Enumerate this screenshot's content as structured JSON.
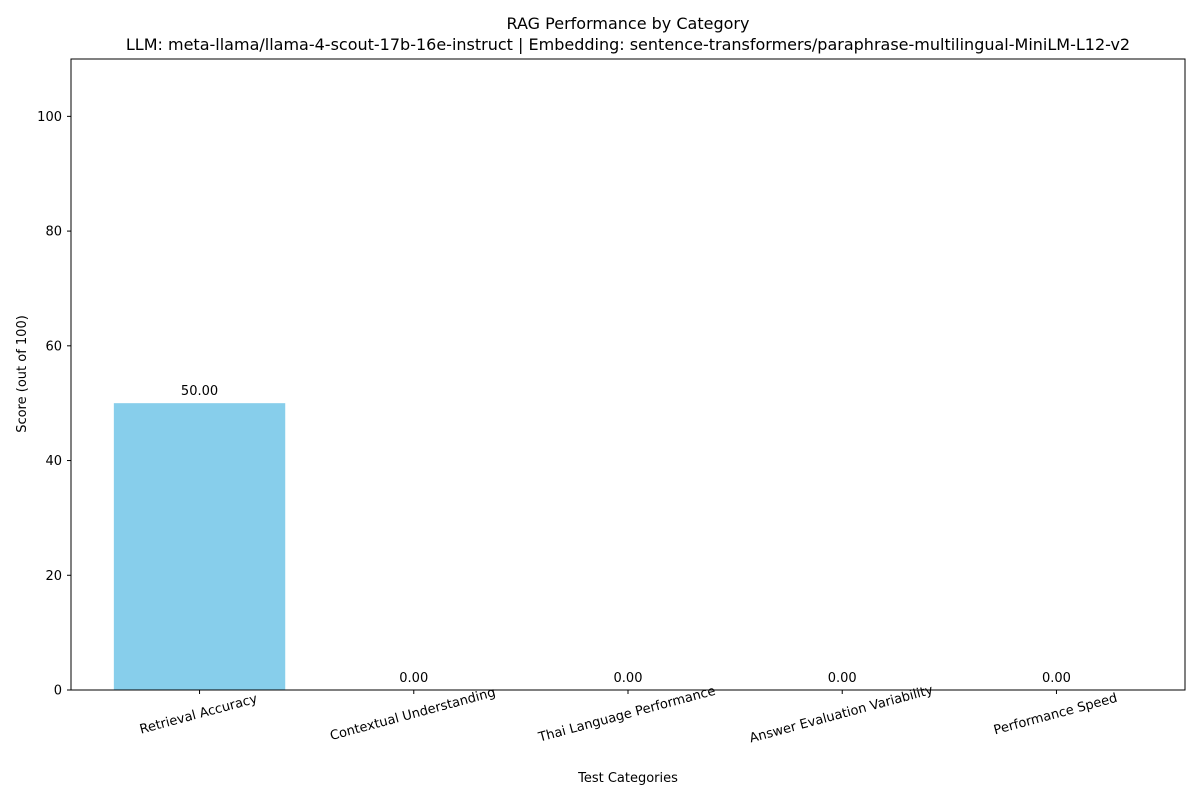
{
  "chart_data": {
    "type": "bar",
    "title": "RAG Performance by Category",
    "subtitle": "LLM: meta-llama/llama-4-scout-17b-16e-instruct | Embedding: sentence-transformers/paraphrase-multilingual-MiniLM-L12-v2",
    "xlabel": "Test Categories",
    "ylabel": "Score (out of 100)",
    "categories": [
      "Retrieval Accuracy",
      "Contextual Understanding",
      "Thai Language Performance",
      "Answer Evaluation Variability",
      "Performance Speed"
    ],
    "values": [
      50,
      0,
      0,
      0,
      0
    ],
    "data_labels": [
      "50.00",
      "0.00",
      "0.00",
      "0.00",
      "0.00"
    ],
    "ylim": [
      0,
      110
    ],
    "yticks": [
      0,
      20,
      40,
      60,
      80,
      100
    ],
    "bar_color": "#87ceeb",
    "grid": false,
    "legend": "none"
  }
}
